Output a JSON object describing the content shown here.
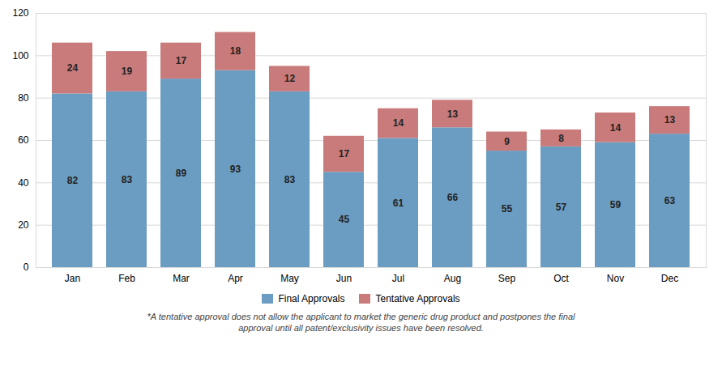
{
  "chart_data": {
    "type": "bar",
    "stacked": true,
    "categories": [
      "Jan",
      "Feb",
      "Mar",
      "Apr",
      "May",
      "Jun",
      "Jul",
      "Aug",
      "Sep",
      "Oct",
      "Nov",
      "Dec"
    ],
    "series": [
      {
        "name": "Final Approvals",
        "color": "#6b9dc2",
        "values": [
          82,
          83,
          89,
          93,
          83,
          45,
          61,
          66,
          55,
          57,
          59,
          63
        ]
      },
      {
        "name": "Tentative Approvals",
        "color": "#c97b7b",
        "values": [
          24,
          19,
          17,
          18,
          12,
          17,
          14,
          13,
          9,
          8,
          14,
          13
        ]
      }
    ],
    "ylim": [
      0,
      120
    ],
    "yticks": [
      0,
      20,
      40,
      60,
      80,
      100,
      120
    ],
    "grid": true,
    "legend": "bottom",
    "data_labels": true,
    "annotations": [
      "*A tentative approval does not allow the applicant to market the generic drug product and postpones the final",
      "approval until all patent/exclusivity issues have been resolved."
    ]
  }
}
